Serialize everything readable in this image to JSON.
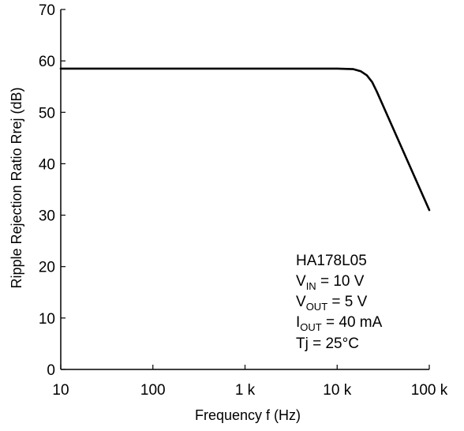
{
  "chart_data": {
    "type": "line",
    "xscale": "log",
    "xlim": [
      10,
      100000
    ],
    "ylim": [
      0,
      70
    ],
    "xlabel": "Frequency  f  (Hz)",
    "ylabel": "Ripple Rejection Ratio  Rrej  (dB)",
    "x_ticks": [
      {
        "value": 10,
        "label": "10"
      },
      {
        "value": 100,
        "label": "100"
      },
      {
        "value": 1000,
        "label": "1 k"
      },
      {
        "value": 10000,
        "label": "10 k"
      },
      {
        "value": 100000,
        "label": "100 k"
      }
    ],
    "y_ticks": [
      {
        "value": 0,
        "label": "0"
      },
      {
        "value": 10,
        "label": "10"
      },
      {
        "value": 20,
        "label": "20"
      },
      {
        "value": 30,
        "label": "30"
      },
      {
        "value": 40,
        "label": "40"
      },
      {
        "value": 50,
        "label": "50"
      },
      {
        "value": 60,
        "label": "60"
      },
      {
        "value": 70,
        "label": "70"
      }
    ],
    "grid": false,
    "series": [
      {
        "x": [
          10,
          100,
          1000,
          10000,
          15000,
          18000,
          21000,
          24000,
          27000,
          100000
        ],
        "y": [
          58.5,
          58.5,
          58.5,
          58.5,
          58.4,
          58.0,
          57.2,
          55.9,
          54.0,
          31.0
        ]
      }
    ],
    "conditions": {
      "device": "HA178L05",
      "vin": {
        "sym": "V",
        "sub": "IN",
        "rest": " = 10 V"
      },
      "vout": {
        "sym": "V",
        "sub": "OUT",
        "rest": " = 5 V"
      },
      "iout": {
        "sym": "I",
        "sub": "OUT",
        "rest": " = 40 mA"
      },
      "tj": "Tj = 25°C"
    },
    "line_color": "#000000"
  }
}
